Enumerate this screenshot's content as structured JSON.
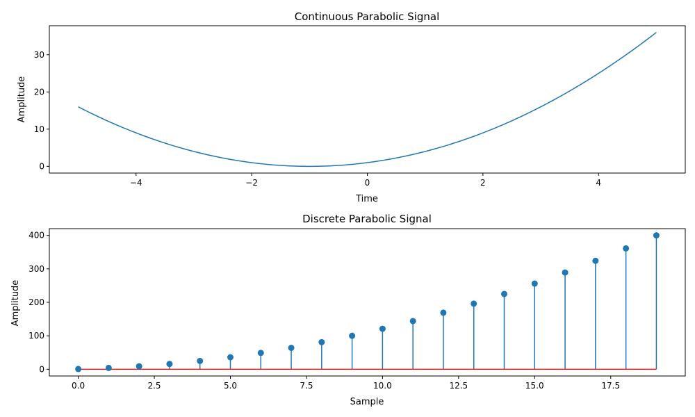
{
  "chart_data": [
    {
      "type": "line",
      "title": "Continuous Parabolic Signal",
      "xlabel": "Time",
      "ylabel": "Amplitude",
      "function": "(t + 1)^2",
      "x_range": [
        -5,
        5
      ],
      "xlim": [
        -5.5,
        5.5
      ],
      "ylim": [
        -1.8,
        37.8
      ],
      "xticks": [
        -4,
        -2,
        0,
        2,
        4
      ],
      "xtick_labels": [
        "−4",
        "−2",
        "0",
        "2",
        "4"
      ],
      "yticks": [
        0,
        10,
        20,
        30
      ],
      "ytick_labels": [
        "0",
        "10",
        "20",
        "30"
      ],
      "grid": false,
      "series": [
        {
          "color": "#1f77b4",
          "x": [
            -5,
            -4.5,
            -4,
            -3.5,
            -3,
            -2.5,
            -2,
            -1.5,
            -1,
            -0.5,
            0,
            0.5,
            1,
            1.5,
            2,
            2.5,
            3,
            3.5,
            4,
            4.5,
            5
          ],
          "y": [
            16,
            12.25,
            9,
            6.25,
            4,
            2.25,
            1,
            0.25,
            0,
            0.25,
            1,
            2.25,
            4,
            6.25,
            9,
            12.25,
            16,
            20.25,
            25,
            30.25,
            36
          ]
        }
      ]
    },
    {
      "type": "stem",
      "title": "Discrete Parabolic Signal",
      "xlabel": "Sample",
      "ylabel": "Amplitude",
      "xlim": [
        -0.95,
        19.95
      ],
      "ylim": [
        -20,
        420
      ],
      "xticks": [
        0,
        2.5,
        5,
        7.5,
        10,
        12.5,
        15,
        17.5
      ],
      "xtick_labels": [
        "0.0",
        "2.5",
        "5.0",
        "7.5",
        "10.0",
        "12.5",
        "15.0",
        "17.5"
      ],
      "yticks": [
        0,
        100,
        200,
        300,
        400
      ],
      "ytick_labels": [
        "0",
        "100",
        "200",
        "300",
        "400"
      ],
      "grid": false,
      "baseline_color": "#d62728",
      "series": [
        {
          "color": "#1f77b4",
          "x": [
            0,
            1,
            2,
            3,
            4,
            5,
            6,
            7,
            8,
            9,
            10,
            11,
            12,
            13,
            14,
            15,
            16,
            17,
            18,
            19
          ],
          "y": [
            1,
            4,
            9,
            16,
            25,
            36,
            49,
            64,
            81,
            100,
            121,
            144,
            169,
            196,
            225,
            256,
            289,
            324,
            361,
            400
          ]
        }
      ]
    }
  ]
}
